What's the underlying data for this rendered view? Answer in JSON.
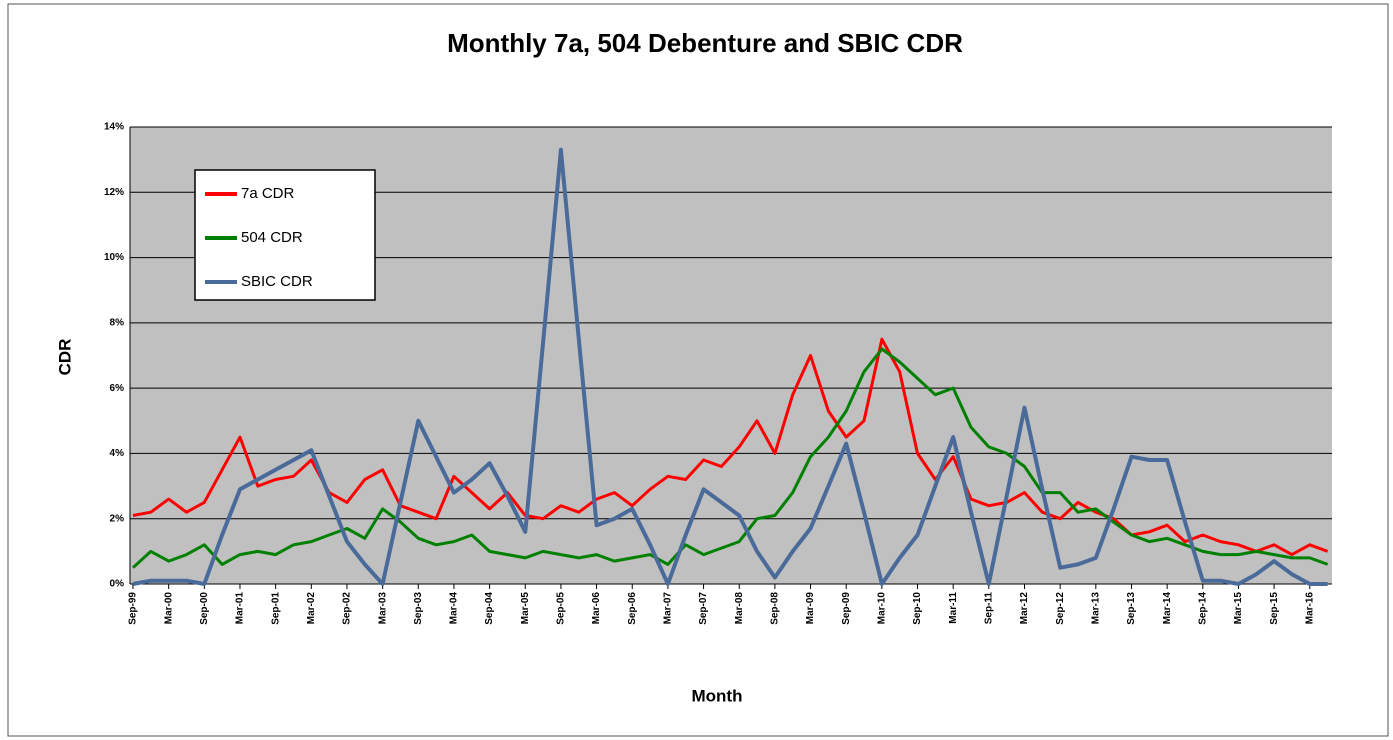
{
  "chart_data": {
    "type": "line",
    "title": "Monthly 7a, 504 Debenture and SBIC CDR",
    "xlabel": "Month",
    "ylabel": "CDR",
    "categories": [
      "Sep-99",
      null,
      "Mar-00",
      null,
      "Sep-00",
      null,
      "Mar-01",
      null,
      "Sep-01",
      null,
      "Mar-02",
      null,
      "Sep-02",
      null,
      "Mar-03",
      null,
      "Sep-03",
      null,
      "Mar-04",
      null,
      "Sep-04",
      null,
      "Mar-05",
      null,
      "Sep-05",
      null,
      "Mar-06",
      null,
      "Sep-06",
      null,
      "Mar-07",
      null,
      "Sep-07",
      null,
      "Mar-08",
      null,
      "Sep-08",
      null,
      "Mar-09",
      null,
      "Sep-09",
      null,
      "Mar-10",
      null,
      "Sep-10",
      null,
      "Mar-11",
      null,
      "Sep-11",
      null,
      "Mar-12",
      null,
      "Sep-12",
      null,
      "Mar-13",
      null,
      "Sep-13",
      null,
      "Mar-14",
      null,
      "Sep-14",
      null,
      "Mar-15",
      null,
      "Sep-15",
      null,
      "Mar-16",
      null
    ],
    "series": [
      {
        "name": "7a CDR",
        "color": "#ff0000",
        "values": [
          2.1,
          2.2,
          2.6,
          2.2,
          2.5,
          3.5,
          4.5,
          3.0,
          3.2,
          3.3,
          3.8,
          2.8,
          2.5,
          3.2,
          3.5,
          2.4,
          2.2,
          2.0,
          3.3,
          2.8,
          2.3,
          2.8,
          2.1,
          2.0,
          2.4,
          2.2,
          2.6,
          2.8,
          2.4,
          2.9,
          3.3,
          3.2,
          3.8,
          3.6,
          4.2,
          5.0,
          4.0,
          5.8,
          7.0,
          5.3,
          4.5,
          5.0,
          7.5,
          6.5,
          4.0,
          3.2,
          3.9,
          2.6,
          2.4,
          2.5,
          2.8,
          2.2,
          2.0,
          2.5,
          2.2,
          2.0,
          1.5,
          1.6,
          1.8,
          1.3,
          1.5,
          1.3,
          1.2,
          1.0,
          1.2,
          0.9,
          1.2,
          1.0
        ]
      },
      {
        "name": "504 CDR",
        "color": "#008000",
        "values": [
          0.5,
          1.0,
          0.7,
          0.9,
          1.2,
          0.6,
          0.9,
          1.0,
          0.9,
          1.2,
          1.3,
          1.5,
          1.7,
          1.4,
          2.3,
          1.9,
          1.4,
          1.2,
          1.3,
          1.5,
          1.0,
          0.9,
          0.8,
          1.0,
          0.9,
          0.8,
          0.9,
          0.7,
          0.8,
          0.9,
          0.6,
          1.2,
          0.9,
          1.1,
          1.3,
          2.0,
          2.1,
          2.8,
          3.9,
          4.5,
          5.3,
          6.5,
          7.2,
          6.8,
          6.3,
          5.8,
          6.0,
          4.8,
          4.2,
          4.0,
          3.6,
          2.8,
          2.8,
          2.2,
          2.3,
          1.9,
          1.5,
          1.3,
          1.4,
          1.2,
          1.0,
          0.9,
          0.9,
          1.0,
          0.9,
          0.8,
          0.8,
          0.6
        ]
      },
      {
        "name": "SBIC CDR",
        "color": "#4a6b9a",
        "values": [
          0,
          0.1,
          0.1,
          0.1,
          0,
          1.5,
          2.9,
          3.2,
          3.5,
          3.8,
          4.1,
          2.7,
          1.3,
          0.6,
          0,
          2.5,
          5.0,
          3.9,
          2.8,
          3.2,
          3.7,
          2.7,
          1.6,
          7.4,
          13.3,
          7.5,
          1.8,
          2.0,
          2.3,
          1.2,
          0,
          1.5,
          2.9,
          2.5,
          2.1,
          1.0,
          0.2,
          1.0,
          1.7,
          3.0,
          4.3,
          2.2,
          0,
          0.8,
          1.5,
          3.0,
          4.5,
          2.2,
          0,
          2.7,
          5.4,
          2.9,
          0.5,
          0.6,
          0.8,
          2.3,
          3.9,
          3.8,
          3.8,
          1.9,
          0.1,
          0.1,
          0,
          0.3,
          0.7,
          0.3,
          0,
          0
        ]
      }
    ],
    "ylim": [
      0,
      14
    ],
    "yticks": [
      {
        "value": 0,
        "label": "0%"
      },
      {
        "value": 2,
        "label": "2%"
      },
      {
        "value": 4,
        "label": "4%"
      },
      {
        "value": 6,
        "label": "6%"
      },
      {
        "value": 8,
        "label": "8%"
      },
      {
        "value": 10,
        "label": "10%"
      },
      {
        "value": 12,
        "label": "12%"
      },
      {
        "value": 14,
        "label": "14%"
      }
    ],
    "grid": true,
    "legend": "upper left"
  }
}
